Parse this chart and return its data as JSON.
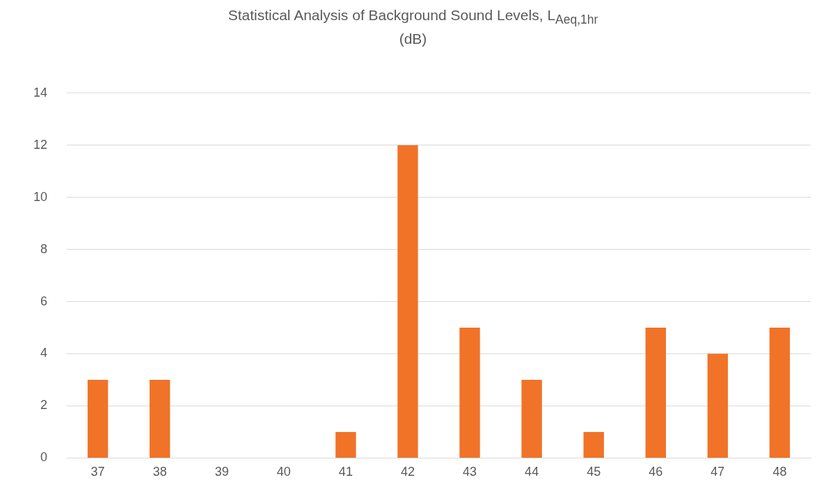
{
  "chart_data": {
    "type": "bar",
    "title": "Statistical Analysis of Background Sound Levels, L$_{Aeq,1hr}$\n(dB)",
    "categories": [
      "37",
      "38",
      "39",
      "40",
      "41",
      "42",
      "43",
      "44",
      "45",
      "46",
      "47",
      "48"
    ],
    "values": [
      3,
      3,
      0,
      0,
      1,
      12,
      5,
      3,
      1,
      5,
      4,
      5
    ],
    "color": "#f07328",
    "ylim": [
      0,
      14
    ],
    "yticks": [
      0,
      2,
      4,
      6,
      8,
      10,
      12,
      14
    ],
    "grid": "y",
    "legend": false
  }
}
